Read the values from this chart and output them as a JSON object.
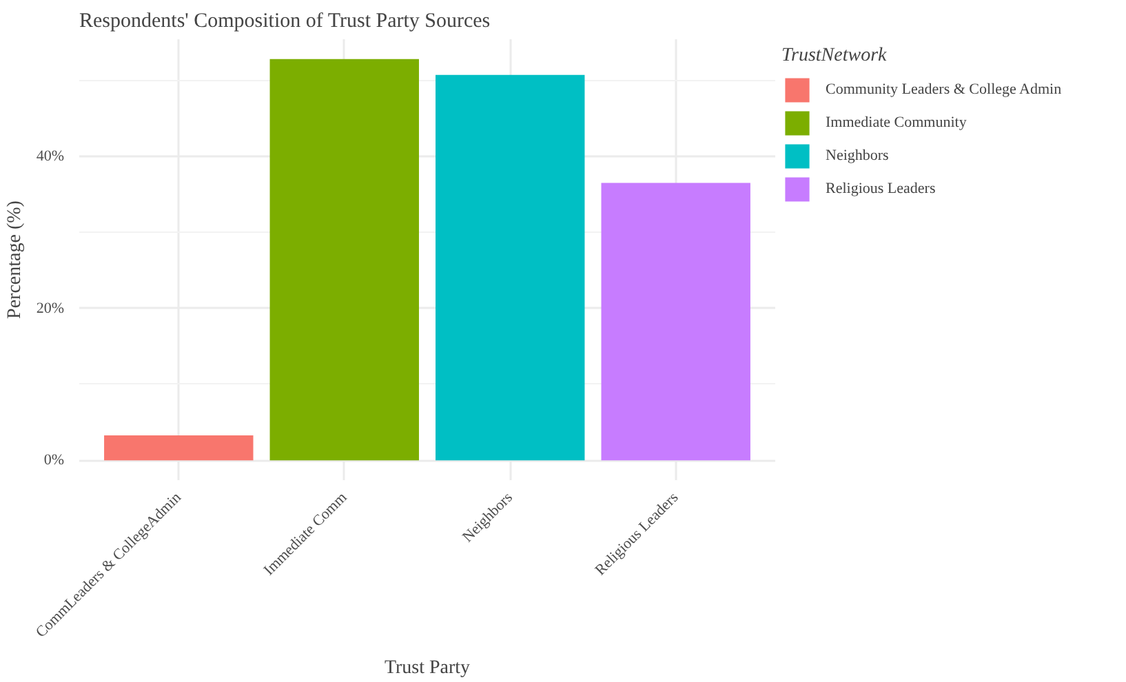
{
  "chart_data": {
    "type": "bar",
    "title": "Respondents' Composition of Trust Party Sources",
    "xlabel": "Trust Party",
    "ylabel": "Percentage (%)",
    "legend_title": "TrustNetwork",
    "categories": [
      "CommLeaders & CollegeAdmin",
      "Immediate Comm",
      "Neighbors",
      "Religious Leaders"
    ],
    "series": [
      {
        "name": "Community Leaders & College Admin",
        "color": "#f8766d",
        "values": [
          3.3,
          null,
          null,
          null
        ]
      },
      {
        "name": "Immediate Community",
        "color": "#7cae00",
        "values": [
          null,
          52.8,
          null,
          null
        ]
      },
      {
        "name": "Neighbors",
        "color": "#00bfc4",
        "values": [
          null,
          null,
          50.7,
          null
        ]
      },
      {
        "name": "Religious Leaders",
        "color": "#c77cff",
        "values": [
          null,
          null,
          null,
          36.5
        ]
      }
    ],
    "ylim": [
      -2.6,
      55.4
    ],
    "yticks": [
      {
        "value": 0,
        "label": "0%"
      },
      {
        "value": 20,
        "label": "20%"
      },
      {
        "value": 40,
        "label": "40%"
      }
    ],
    "grid": true,
    "legend": "right"
  }
}
